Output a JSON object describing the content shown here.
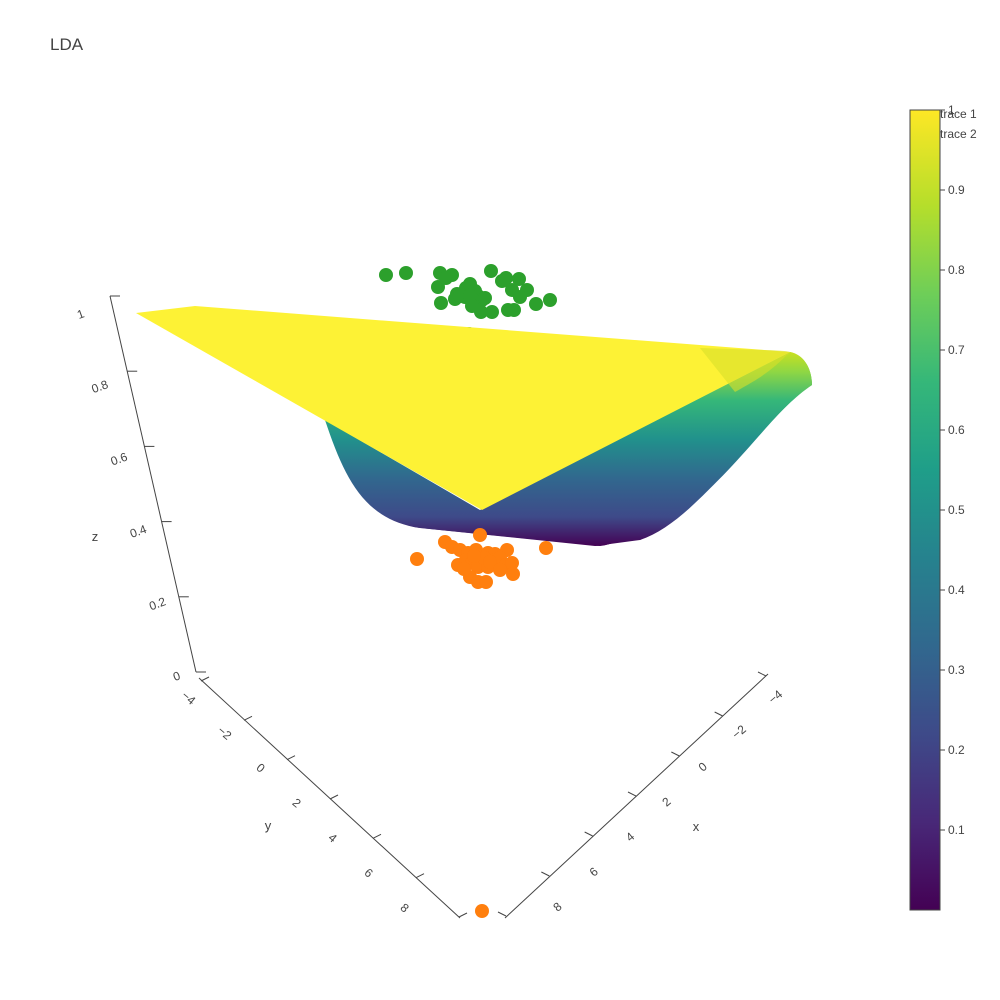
{
  "chart_data": {
    "type": "scatter",
    "title": "LDA",
    "legend": {
      "placement": "top-right",
      "entries": [
        "trace 1",
        "trace 2"
      ]
    },
    "axes": {
      "x": {
        "label": "x",
        "ticks": [
          "−4",
          "−2",
          "0",
          "2",
          "4",
          "6",
          "8"
        ],
        "range": [
          -5,
          9
        ]
      },
      "y": {
        "label": "y",
        "ticks": [
          "−4",
          "−2",
          "0",
          "2",
          "4",
          "6",
          "8"
        ],
        "range": [
          -5,
          9
        ]
      },
      "z": {
        "label": "z",
        "ticks": [
          "0",
          "0.2",
          "0.4",
          "0.6",
          "0.8",
          "1"
        ],
        "range": [
          0,
          1
        ]
      }
    },
    "surface": {
      "colorscale": "viridis",
      "description_z_range": [
        0,
        1
      ]
    },
    "colorbar": {
      "ticks": [
        "0.1",
        "0.2",
        "0.3",
        "0.4",
        "0.5",
        "0.6",
        "0.7",
        "0.8",
        "0.9",
        "1"
      ],
      "range": [
        0,
        1
      ]
    },
    "series": [
      {
        "name": "trace 1",
        "color": "#2ca02c",
        "z": 1,
        "count": 34
      },
      {
        "name": "trace 2",
        "color": "#ff7f0e",
        "z": 0,
        "count": 30
      }
    ]
  }
}
